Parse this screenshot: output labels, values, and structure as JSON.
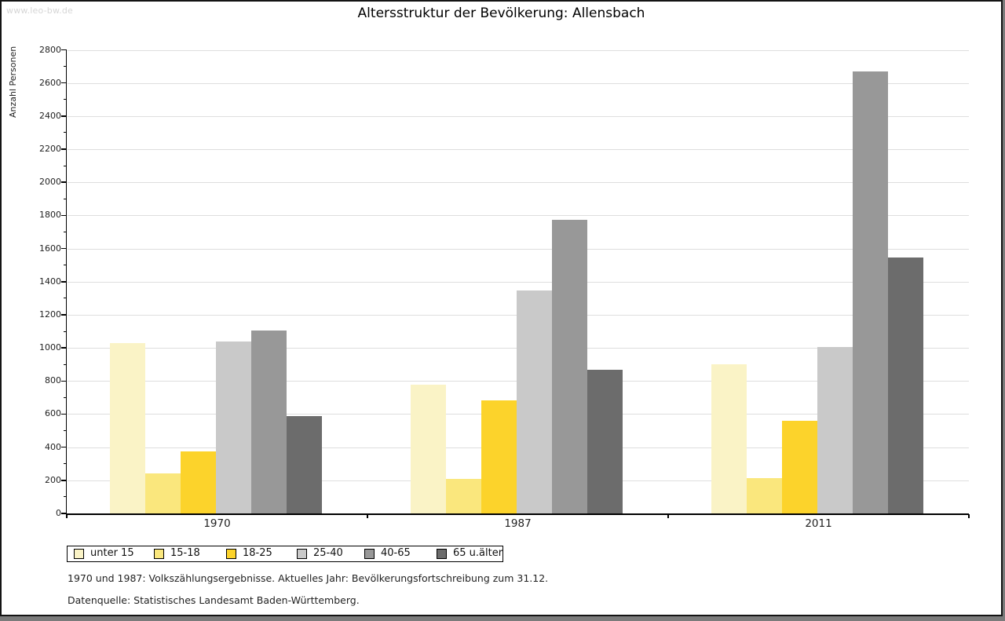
{
  "watermark": "www.leo-bw.de",
  "footer": {
    "line1": "1970 und 1987: Volkszählungsergebnisse. Aktuelles Jahr: Bevölkerungsfortschreibung zum 31.12.",
    "line2": "Datenquelle: Statistisches Landesamt Baden-Württemberg."
  },
  "chart_data": {
    "type": "bar",
    "title": "Altersstruktur der Bevölkerung: Allensbach",
    "xlabel": "",
    "ylabel": "Anzahl Personen",
    "categories": [
      "1970",
      "1987",
      "2011"
    ],
    "series": [
      {
        "name": "unter 15",
        "color": "#FAF3C6",
        "values": [
          1030,
          780,
          900
        ]
      },
      {
        "name": "15-18",
        "color": "#FAE77D",
        "values": [
          240,
          210,
          215
        ]
      },
      {
        "name": "18-25",
        "color": "#FCD32B",
        "values": [
          375,
          685,
          560
        ]
      },
      {
        "name": "25-40",
        "color": "#C9C9C9",
        "values": [
          1040,
          1345,
          1005
        ]
      },
      {
        "name": "40-65",
        "color": "#989898",
        "values": [
          1105,
          1775,
          2670
        ]
      },
      {
        "name": "65 u.älter",
        "color": "#6C6C6C",
        "values": [
          590,
          870,
          1545
        ]
      }
    ],
    "ylim": [
      0,
      2800
    ],
    "ytick_step": 200,
    "yticks": [
      0,
      200,
      400,
      600,
      800,
      1000,
      1200,
      1400,
      1600,
      1800,
      2000,
      2200,
      2400,
      2600,
      2800
    ],
    "grid": true,
    "legend_position": "bottom-left"
  },
  "colors": {
    "gridline": "#DEDEDE",
    "axis": "#000000",
    "text": "#222222",
    "watermark": "#D6D6D6",
    "frame_shadow": "#7B7B7B",
    "frame_border": "#141414"
  }
}
